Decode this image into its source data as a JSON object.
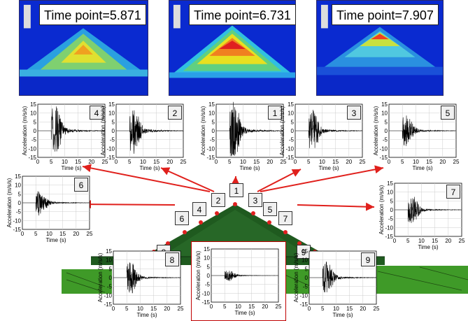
{
  "fem_panels": [
    {
      "label": "Time point=5.871",
      "variant": "a"
    },
    {
      "label": "Time point=6.731",
      "variant": "b"
    },
    {
      "label": "Time point=7.907",
      "variant": "c"
    }
  ],
  "axis": {
    "ylabel": "Acceleration (m/s/s)",
    "xlabel": "Time (s)",
    "yticks": [
      "15",
      "10",
      "5",
      "0",
      "-5",
      "-10",
      "-15"
    ],
    "xticks": [
      "0",
      "5",
      "10",
      "15",
      "20",
      "25"
    ]
  },
  "plots": [
    {
      "id": "4",
      "amp": 0.85
    },
    {
      "id": "2",
      "amp": 0.8
    },
    {
      "id": "1",
      "amp": 1.0
    },
    {
      "id": "3",
      "amp": 0.7
    },
    {
      "id": "5",
      "amp": 0.55
    },
    {
      "id": "6",
      "amp": 0.45
    },
    {
      "id": "7",
      "amp": 0.5
    },
    {
      "id": "8",
      "amp": 0.55
    },
    {
      "id": "base",
      "amp": 0.18
    },
    {
      "id": "9",
      "amp": 0.55
    }
  ],
  "dam_labels": [
    "1",
    "2",
    "3",
    "4",
    "5",
    "6",
    "7",
    "8",
    "9"
  ],
  "colors": {
    "arrow": "#e0201c",
    "marker": "#e02020",
    "mesh": "#1f5a1f",
    "foundation": "#4aa02a"
  }
}
